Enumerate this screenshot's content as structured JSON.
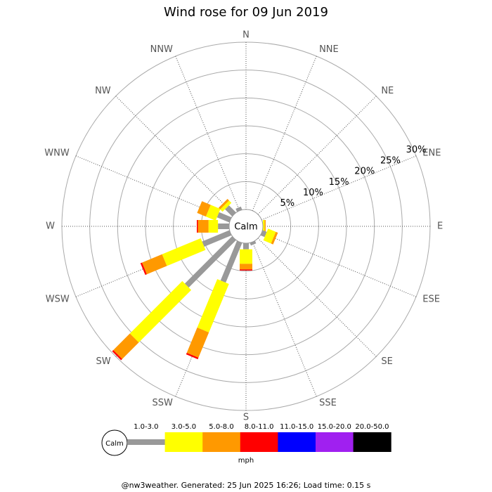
{
  "chart_data": {
    "type": "windrose",
    "title": "Wind rose for 09 Jun 2019",
    "calm_label": "Calm",
    "legend_unit": "mph",
    "footer": "@nw3weather. Generated: 25 Jun 2025 16:26; Load time: 0.15 s",
    "categories": [
      "N",
      "NNE",
      "NE",
      "ENE",
      "E",
      "ESE",
      "SE",
      "SSE",
      "S",
      "SSW",
      "SW",
      "WSW",
      "W",
      "WNW",
      "NW",
      "NNW"
    ],
    "rlim": [
      0,
      30
    ],
    "rticks": [
      {
        "value": 5,
        "label": "5%"
      },
      {
        "value": 10,
        "label": "10%"
      },
      {
        "value": 15,
        "label": "15%"
      },
      {
        "value": 20,
        "label": "20%"
      },
      {
        "value": 25,
        "label": "25%"
      },
      {
        "value": 30,
        "label": "30%"
      }
    ],
    "series": [
      {
        "name": "1.0-3.0",
        "color": "#999999",
        "values": [
          0,
          0,
          0,
          0,
          0,
          0.8,
          0,
          0.5,
          1.1,
          7.7,
          12,
          5.3,
          2,
          2.4,
          1.8,
          0.6
        ]
      },
      {
        "name": "3.0-5.0",
        "color": "#ffff00",
        "values": [
          0,
          0,
          0,
          0,
          0.3,
          1.5,
          0,
          0,
          2.6,
          9.4,
          13.3,
          7.5,
          1.7,
          1.9,
          0.6,
          0
        ]
      },
      {
        "name": "5.0-8.0",
        "color": "#ff9900",
        "values": [
          0,
          0,
          0,
          0,
          0.2,
          0.4,
          0,
          0,
          1.0,
          4.9,
          4.2,
          3.9,
          1.9,
          1.7,
          0.4,
          0
        ]
      },
      {
        "name": "8.0-11.0",
        "color": "#ff0000",
        "values": [
          0,
          0,
          0,
          0,
          0,
          0,
          0,
          0,
          0.2,
          0.3,
          0.3,
          0.3,
          0.2,
          0,
          0,
          0
        ]
      },
      {
        "name": "11.0-15.0",
        "color": "#0000ff",
        "values": [
          0,
          0,
          0,
          0,
          0,
          0,
          0,
          0,
          0,
          0,
          0,
          0,
          0,
          0,
          0,
          0
        ]
      },
      {
        "name": "15.0-20.0",
        "color": "#a020f0",
        "values": [
          0,
          0,
          0,
          0,
          0,
          0,
          0,
          0,
          0,
          0,
          0,
          0,
          0,
          0,
          0,
          0
        ]
      },
      {
        "name": "20.0-50.0",
        "color": "#000000",
        "values": [
          0,
          0,
          0,
          0,
          0,
          0,
          0,
          0,
          0,
          0,
          0,
          0,
          0,
          0,
          0,
          0
        ]
      }
    ]
  }
}
